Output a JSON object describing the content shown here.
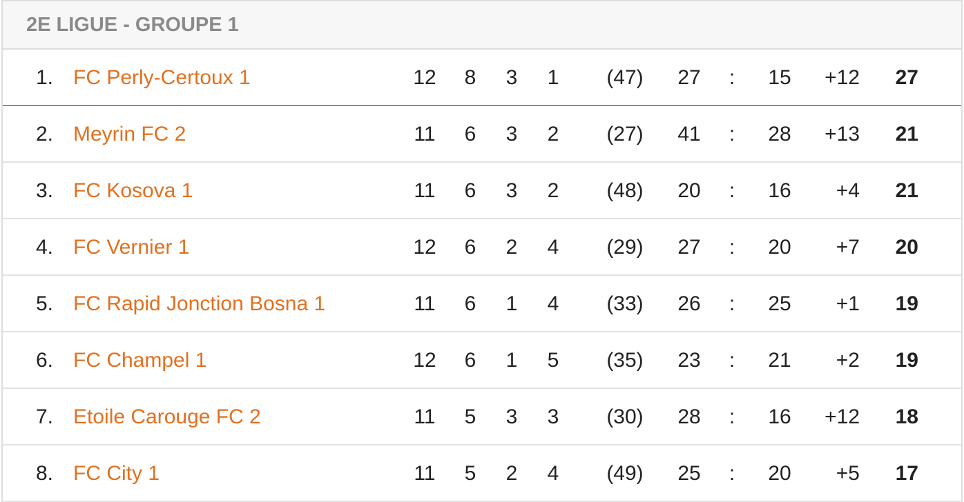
{
  "header": {
    "title": "2E LIGUE - GROUPE 1"
  },
  "table": {
    "rows": [
      [
        "1.",
        "FC Perly-Certoux 1",
        "12",
        "8",
        "3",
        "1",
        "(47)",
        "27",
        ":",
        "15",
        "+12",
        "27"
      ],
      [
        "2.",
        "Meyrin FC 2",
        "11",
        "6",
        "3",
        "2",
        "(27)",
        "41",
        ":",
        "28",
        "+13",
        "21"
      ],
      [
        "3.",
        "FC Kosova 1",
        "11",
        "6",
        "3",
        "2",
        "(48)",
        "20",
        ":",
        "16",
        "+4",
        "21"
      ],
      [
        "4.",
        "FC Vernier 1",
        "12",
        "6",
        "2",
        "4",
        "(29)",
        "27",
        ":",
        "20",
        "+7",
        "20"
      ],
      [
        "5.",
        "FC Rapid Jonction Bosna 1",
        "11",
        "6",
        "1",
        "4",
        "(33)",
        "26",
        ":",
        "25",
        "+1",
        "19"
      ],
      [
        "6.",
        "FC Champel 1",
        "12",
        "6",
        "1",
        "5",
        "(35)",
        "23",
        ":",
        "21",
        "+2",
        "19"
      ],
      [
        "7.",
        "Etoile Carouge FC 2",
        "11",
        "5",
        "3",
        "3",
        "(30)",
        "28",
        ":",
        "16",
        "+12",
        "18"
      ],
      [
        "8.",
        "FC City 1",
        "11",
        "5",
        "2",
        "4",
        "(49)",
        "25",
        ":",
        "20",
        "+5",
        "17"
      ]
    ]
  }
}
